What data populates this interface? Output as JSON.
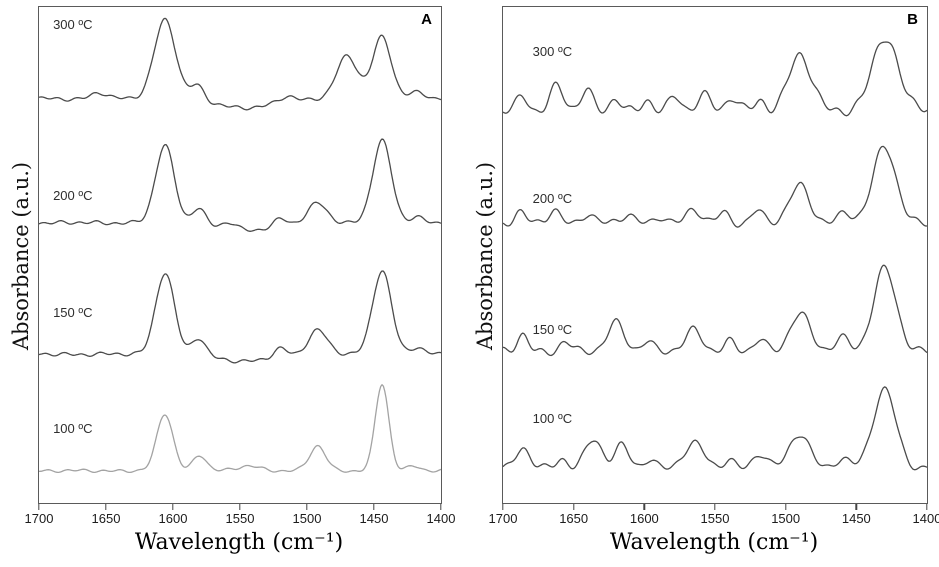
{
  "chart_data": [
    {
      "type": "line",
      "panel": "A",
      "title": "",
      "xlabel": "Wavelength (cm⁻¹)",
      "ylabel": "Absorbance (a.u.)",
      "x_range": [
        1700,
        1400
      ],
      "x_ticks": [
        "1700",
        "1650",
        "1600",
        "1550",
        "1500",
        "1450",
        "1400"
      ],
      "grid": false,
      "legend_position": "none",
      "series": [
        {
          "name": "300 ºC",
          "color": "#4b4b4b",
          "baseline": 0.815,
          "noise": 0.005,
          "seed": 1,
          "label_pos": [
            0.035,
            0.02
          ],
          "peaks": [
            {
              "c": 1655,
              "h": 0.012,
              "w": 6
            },
            {
              "c": 1606,
              "h": 0.16,
              "w": 8
            },
            {
              "c": 1582,
              "h": 0.03,
              "w": 5
            },
            {
              "c": 1545,
              "h": -0.018,
              "w": 22
            },
            {
              "c": 1515,
              "h": 0.012,
              "w": 6
            },
            {
              "c": 1470,
              "h": 0.085,
              "w": 8
            },
            {
              "c": 1444,
              "h": 0.125,
              "w": 7
            },
            {
              "c": 1418,
              "h": 0.012,
              "w": 6
            }
          ]
        },
        {
          "name": "200 ºC",
          "color": "#4b4b4b",
          "baseline": 0.565,
          "noise": 0.005,
          "seed": 2,
          "label_pos": [
            0.035,
            0.365
          ],
          "peaks": [
            {
              "c": 1606,
              "h": 0.155,
              "w": 7
            },
            {
              "c": 1581,
              "h": 0.032,
              "w": 5
            },
            {
              "c": 1558,
              "h": 0.012,
              "w": 5
            },
            {
              "c": 1545,
              "h": -0.015,
              "w": 20
            },
            {
              "c": 1520,
              "h": 0.015,
              "w": 5
            },
            {
              "c": 1492,
              "h": 0.04,
              "w": 7
            },
            {
              "c": 1444,
              "h": 0.165,
              "w": 7
            },
            {
              "c": 1418,
              "h": 0.012,
              "w": 5
            }
          ]
        },
        {
          "name": "150 ºC",
          "color": "#4b4b4b",
          "baseline": 0.3,
          "noise": 0.005,
          "seed": 3,
          "label_pos": [
            0.035,
            0.6
          ],
          "peaks": [
            {
              "c": 1606,
              "h": 0.165,
              "w": 7
            },
            {
              "c": 1581,
              "h": 0.035,
              "w": 5
            },
            {
              "c": 1545,
              "h": -0.014,
              "w": 20
            },
            {
              "c": 1520,
              "h": 0.018,
              "w": 5
            },
            {
              "c": 1492,
              "h": 0.05,
              "w": 7
            },
            {
              "c": 1444,
              "h": 0.17,
              "w": 7
            },
            {
              "c": 1418,
              "h": 0.013,
              "w": 5
            }
          ]
        },
        {
          "name": "100 ºC",
          "color": "#a3a3a3",
          "baseline": 0.065,
          "noise": 0.004,
          "seed": 4,
          "label_pos": [
            0.035,
            0.835
          ],
          "peaks": [
            {
              "c": 1606,
              "h": 0.115,
              "w": 6
            },
            {
              "c": 1580,
              "h": 0.032,
              "w": 5
            },
            {
              "c": 1543,
              "h": 0.01,
              "w": 8
            },
            {
              "c": 1492,
              "h": 0.05,
              "w": 6
            },
            {
              "c": 1444,
              "h": 0.175,
              "w": 5
            },
            {
              "c": 1420,
              "h": 0.01,
              "w": 5
            }
          ]
        }
      ]
    },
    {
      "type": "line",
      "panel": "B",
      "title": "",
      "xlabel": "Wavelength (cm⁻¹)",
      "ylabel": "Absorbance (a.u.)",
      "x_range": [
        1700,
        1400
      ],
      "x_ticks": [
        "1700",
        "1650",
        "1600",
        "1550",
        "1500",
        "1450",
        "1400"
      ],
      "grid": false,
      "legend_position": "none",
      "series": [
        {
          "name": "300 ºC",
          "color": "#4b4b4b",
          "baseline": 0.79,
          "noise": 0.013,
          "seed": 5,
          "label_pos": [
            0.07,
            0.075
          ],
          "peaks": [
            {
              "c": 1686,
              "h": 0.03,
              "w": 4
            },
            {
              "c": 1662,
              "h": 0.05,
              "w": 5
            },
            {
              "c": 1641,
              "h": 0.042,
              "w": 4
            },
            {
              "c": 1620,
              "h": 0.028,
              "w": 4
            },
            {
              "c": 1598,
              "h": 0.02,
              "w": 4
            },
            {
              "c": 1578,
              "h": 0.028,
              "w": 4
            },
            {
              "c": 1558,
              "h": 0.034,
              "w": 5
            },
            {
              "c": 1538,
              "h": 0.028,
              "w": 4
            },
            {
              "c": 1518,
              "h": 0.02,
              "w": 4
            },
            {
              "c": 1490,
              "h": 0.115,
              "w": 8
            },
            {
              "c": 1430,
              "h": 0.15,
              "w": 9
            },
            {
              "c": 1406,
              "h": 0.01,
              "w": 5
            }
          ]
        },
        {
          "name": "200 ºC",
          "color": "#4b4b4b",
          "baseline": 0.565,
          "noise": 0.01,
          "seed": 6,
          "label_pos": [
            0.07,
            0.37
          ],
          "peaks": [
            {
              "c": 1688,
              "h": 0.02,
              "w": 4
            },
            {
              "c": 1664,
              "h": 0.024,
              "w": 4
            },
            {
              "c": 1640,
              "h": 0.02,
              "w": 4
            },
            {
              "c": 1612,
              "h": 0.016,
              "w": 4
            },
            {
              "c": 1588,
              "h": 0.014,
              "w": 4
            },
            {
              "c": 1565,
              "h": 0.026,
              "w": 5
            },
            {
              "c": 1544,
              "h": 0.02,
              "w": 4
            },
            {
              "c": 1520,
              "h": 0.026,
              "w": 4
            },
            {
              "c": 1490,
              "h": 0.075,
              "w": 7
            },
            {
              "c": 1458,
              "h": 0.02,
              "w": 5
            },
            {
              "c": 1430,
              "h": 0.155,
              "w": 8
            }
          ]
        },
        {
          "name": "150 ºC",
          "color": "#4b4b4b",
          "baseline": 0.305,
          "noise": 0.01,
          "seed": 7,
          "label_pos": [
            0.07,
            0.635
          ],
          "peaks": [
            {
              "c": 1686,
              "h": 0.035,
              "w": 4
            },
            {
              "c": 1656,
              "h": 0.02,
              "w": 4
            },
            {
              "c": 1620,
              "h": 0.06,
              "w": 6
            },
            {
              "c": 1598,
              "h": 0.02,
              "w": 4
            },
            {
              "c": 1565,
              "h": 0.045,
              "w": 6
            },
            {
              "c": 1540,
              "h": 0.02,
              "w": 4
            },
            {
              "c": 1518,
              "h": 0.026,
              "w": 4
            },
            {
              "c": 1490,
              "h": 0.078,
              "w": 7
            },
            {
              "c": 1460,
              "h": 0.028,
              "w": 5
            },
            {
              "c": 1430,
              "h": 0.168,
              "w": 8
            }
          ]
        },
        {
          "name": "100 ºC",
          "color": "#4b4b4b",
          "baseline": 0.07,
          "noise": 0.009,
          "seed": 8,
          "label_pos": [
            0.07,
            0.815
          ],
          "peaks": [
            {
              "c": 1686,
              "h": 0.04,
              "w": 5
            },
            {
              "c": 1658,
              "h": 0.018,
              "w": 4
            },
            {
              "c": 1636,
              "h": 0.058,
              "w": 6
            },
            {
              "c": 1616,
              "h": 0.045,
              "w": 5
            },
            {
              "c": 1596,
              "h": 0.02,
              "w": 4
            },
            {
              "c": 1565,
              "h": 0.05,
              "w": 7
            },
            {
              "c": 1540,
              "h": 0.018,
              "w": 4
            },
            {
              "c": 1518,
              "h": 0.03,
              "w": 5
            },
            {
              "c": 1490,
              "h": 0.07,
              "w": 7
            },
            {
              "c": 1460,
              "h": 0.02,
              "w": 5
            },
            {
              "c": 1430,
              "h": 0.16,
              "w": 8
            }
          ]
        }
      ]
    }
  ]
}
